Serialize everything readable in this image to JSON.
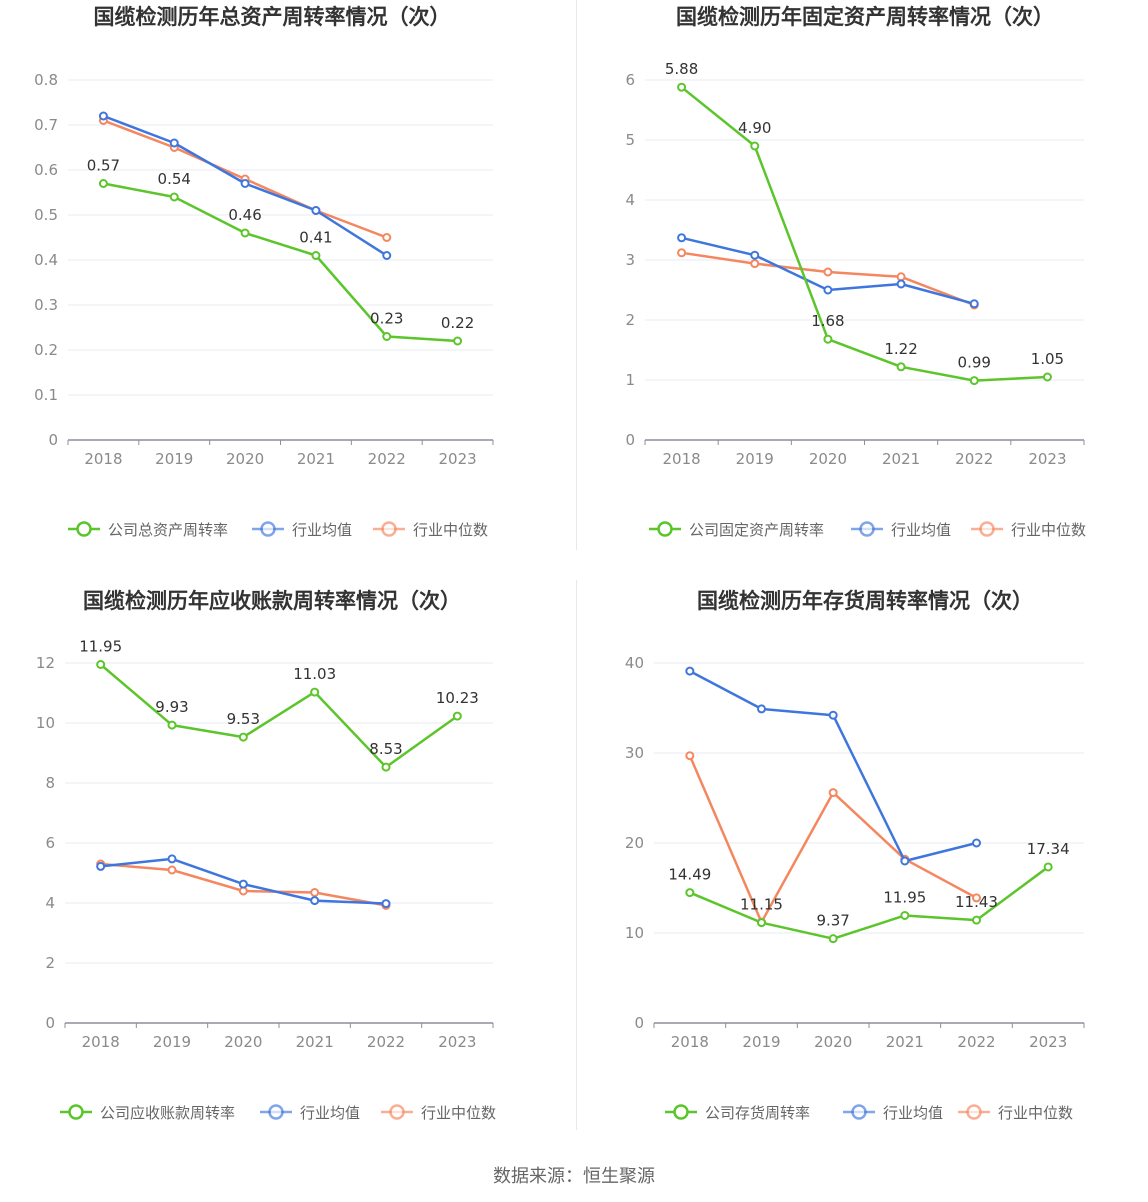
{
  "colors": {
    "company": "#5cc52b",
    "avg": "#3f76de",
    "median": "#f4875f",
    "grid": "#e8ebf3",
    "axis": "#8b8f9c"
  },
  "source": "数据来源：恒生聚源",
  "chart_data": [
    {
      "type": "line",
      "title": "国缆检测历年总资产周转率情况（次）",
      "categories": [
        "2018",
        "2019",
        "2020",
        "2021",
        "2022",
        "2023"
      ],
      "yticks": [
        "0",
        "0.1",
        "0.2",
        "0.3",
        "0.4",
        "0.5",
        "0.6",
        "0.7",
        "0.8"
      ],
      "ylim": [
        0,
        0.8
      ],
      "legend_position": "bottom",
      "series": [
        {
          "name": "公司总资产周转率",
          "values": [
            0.57,
            0.54,
            0.46,
            0.41,
            0.23,
            0.22
          ],
          "labels": [
            "0.57",
            "0.54",
            "0.46",
            "0.41",
            "0.23",
            "0.22"
          ]
        },
        {
          "name": "行业均值",
          "values": [
            0.72,
            0.66,
            0.57,
            0.51,
            0.41,
            null
          ]
        },
        {
          "name": "行业中位数",
          "values": [
            0.71,
            0.65,
            0.58,
            0.51,
            0.45,
            null
          ]
        }
      ]
    },
    {
      "type": "line",
      "title": "国缆检测历年固定资产周转率情况（次）",
      "categories": [
        "2018",
        "2019",
        "2020",
        "2021",
        "2022",
        "2023"
      ],
      "yticks": [
        "0",
        "1",
        "2",
        "3",
        "4",
        "5",
        "6"
      ],
      "ylim": [
        0,
        6
      ],
      "legend_position": "bottom",
      "series": [
        {
          "name": "公司固定资产周转率",
          "values": [
            5.88,
            4.9,
            1.68,
            1.22,
            0.99,
            1.05
          ],
          "labels": [
            "5.88",
            "4.90",
            "1.68",
            "1.22",
            "0.99",
            "1.05"
          ]
        },
        {
          "name": "行业均值",
          "values": [
            3.37,
            3.08,
            2.5,
            2.6,
            2.27,
            null
          ]
        },
        {
          "name": "行业中位数",
          "values": [
            3.12,
            2.94,
            2.8,
            2.72,
            2.25,
            null
          ]
        }
      ]
    },
    {
      "type": "line",
      "title": "国缆检测历年应收账款周转率情况（次）",
      "categories": [
        "2018",
        "2019",
        "2020",
        "2021",
        "2022",
        "2023"
      ],
      "yticks": [
        "0",
        "2",
        "4",
        "6",
        "8",
        "10",
        "12"
      ],
      "ylim": [
        0,
        12
      ],
      "legend_position": "bottom",
      "series": [
        {
          "name": "公司应收账款周转率",
          "values": [
            11.95,
            9.93,
            9.53,
            11.03,
            8.53,
            10.23
          ],
          "labels": [
            "11.95",
            "9.93",
            "9.53",
            "11.03",
            "8.53",
            "10.23"
          ]
        },
        {
          "name": "行业均值",
          "values": [
            5.22,
            5.47,
            4.63,
            4.08,
            3.98,
            null
          ]
        },
        {
          "name": "行业中位数",
          "values": [
            5.3,
            5.1,
            4.4,
            4.35,
            3.92,
            null
          ]
        }
      ]
    },
    {
      "type": "line",
      "title": "国缆检测历年存货周转率情况（次）",
      "categories": [
        "2018",
        "2019",
        "2020",
        "2021",
        "2022",
        "2023"
      ],
      "yticks": [
        "0",
        "10",
        "20",
        "30",
        "40"
      ],
      "ylim": [
        0,
        40
      ],
      "legend_position": "bottom",
      "series": [
        {
          "name": "公司存货周转率",
          "values": [
            14.49,
            11.15,
            9.37,
            11.95,
            11.43,
            17.34
          ],
          "labels": [
            "14.49",
            "11.15",
            "9.37",
            "11.95",
            "11.43",
            "17.34"
          ]
        },
        {
          "name": "行业均值",
          "values": [
            39.1,
            34.9,
            34.2,
            18.0,
            20.0,
            null
          ]
        },
        {
          "name": "行业中位数",
          "values": [
            29.7,
            11.2,
            25.6,
            18.2,
            13.9,
            null
          ]
        }
      ]
    }
  ]
}
